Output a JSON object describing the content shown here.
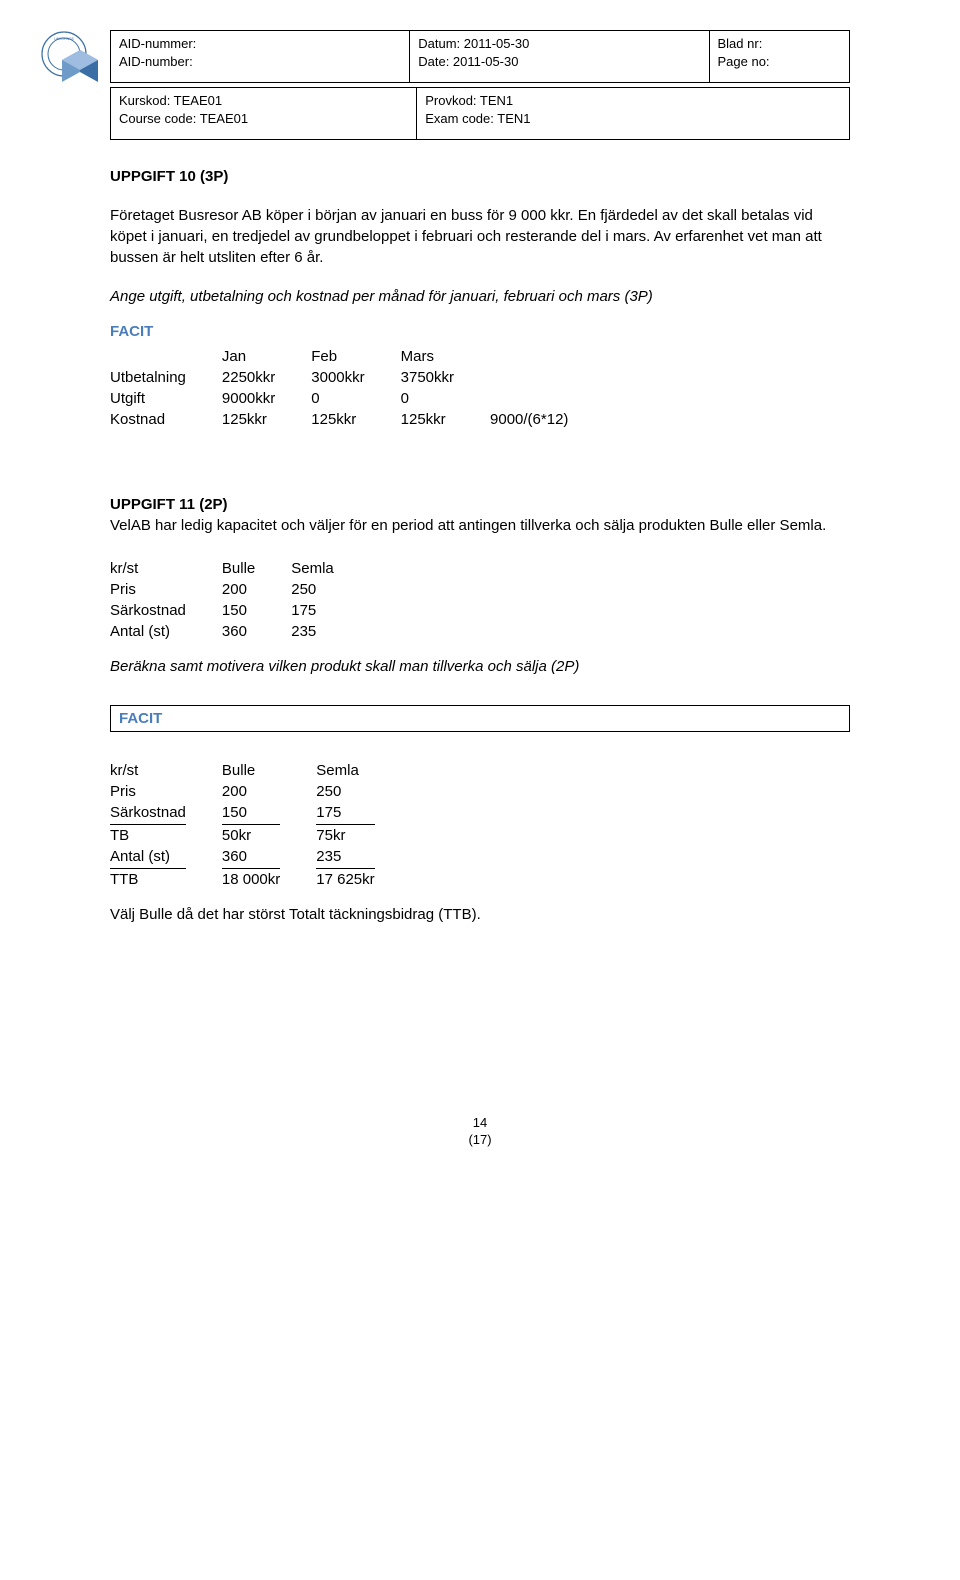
{
  "header": {
    "aid_nummer_label": "AID-nummer:",
    "aid_number_label": "AID-number:",
    "datum_label": "Datum: 2011-05-30",
    "date_label": "Date: 2011-05-30",
    "bladnr_label": "Blad nr:",
    "pageno_label": "Page no:",
    "kurskod_label": "Kurskod: TEAE01",
    "coursecode_label": "Course code: TEAE01",
    "provkod_label": "Provkod: TEN1",
    "examcode_label": "Exam code: TEN1"
  },
  "u10": {
    "title": "UPPGIFT 10 (3P)",
    "p1": "Företaget Busresor AB köper i början av januari en buss för 9 000 kkr. En fjärdedel av det skall betalas vid köpet i januari, en tredjedel av grundbeloppet i februari och resterande del i mars. Av erfarenhet vet man att bussen är helt utsliten efter 6 år.",
    "instr": "Ange utgift, utbetalning och kostnad per månad för januari, februari och mars (3P)",
    "facit_label": "FACIT",
    "table": {
      "head": [
        "",
        "Jan",
        "Feb",
        "Mars",
        ""
      ],
      "rows": [
        [
          "Utbetalning",
          "2250kkr",
          "3000kkr",
          "3750kkr",
          ""
        ],
        [
          "Utgift",
          "9000kkr",
          "0",
          "0",
          ""
        ],
        [
          "Kostnad",
          "125kkr",
          "125kkr",
          "125kkr",
          "9000/(6*12)"
        ]
      ]
    }
  },
  "u11": {
    "title": "UPPGIFT 11 (2P)",
    "p1": "VelAB har ledig kapacitet och väljer för en period att antingen tillverka och sälja produkten Bulle eller Semla.",
    "table1": {
      "rows": [
        [
          "kr/st",
          "Bulle",
          "Semla"
        ],
        [
          "Pris",
          "200",
          "250"
        ],
        [
          "Särkostnad",
          "150",
          "175"
        ],
        [
          "Antal (st)",
          "360",
          "235"
        ]
      ]
    },
    "instr": "Beräkna samt motivera vilken produkt skall man tillverka och sälja (2P)",
    "facit_label": "FACIT",
    "table2": {
      "rows": [
        {
          "c": [
            "kr/st",
            "Bulle",
            "Semla"
          ],
          "ul": false
        },
        {
          "c": [
            "Pris",
            "200",
            "250"
          ],
          "ul": false
        },
        {
          "c": [
            "Särkostnad",
            "150",
            "175"
          ],
          "ul": true
        },
        {
          "c": [
            "TB",
            "50kr",
            "75kr"
          ],
          "ul": false
        },
        {
          "c": [
            "Antal (st)",
            "360",
            "235"
          ],
          "ul": true
        },
        {
          "c": [
            "TTB",
            "18 000kr",
            "17 625kr"
          ],
          "ul": false
        }
      ]
    },
    "conclusion": "Välj Bulle då det har störst Totalt täckningsbidrag (TTB)."
  },
  "footer": {
    "page": "14",
    "total": "(17)"
  },
  "colors": {
    "facit": "#4a7ebb",
    "seal": "#3a6ea5"
  }
}
